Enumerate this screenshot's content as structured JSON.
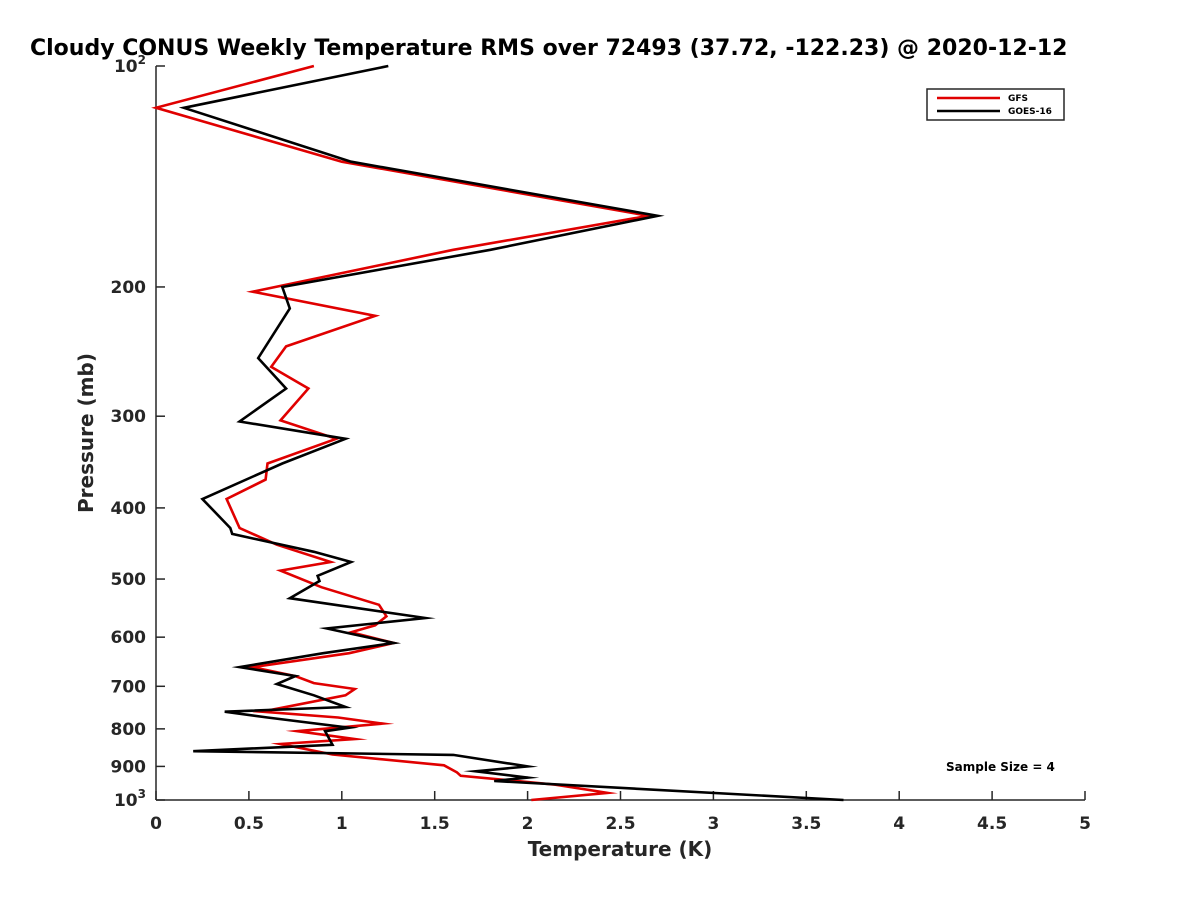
{
  "chart_data": {
    "type": "line",
    "title": "Cloudy CONUS Weekly Temperature RMS over 72493 (37.72, -122.23) @ 2020-12-12",
    "xlabel": "Temperature (K)",
    "ylabel": "Pressure (mb)",
    "xlim": [
      0,
      5
    ],
    "ylim": [
      100,
      1000
    ],
    "yscale": "log",
    "y_reversed": true,
    "x_ticks": [
      "0",
      "0.5",
      "1",
      "1.5",
      "2",
      "2.5",
      "3",
      "3.5",
      "4",
      "4.5",
      "5"
    ],
    "x_tick_values": [
      0,
      0.5,
      1,
      1.5,
      2,
      2.5,
      3,
      3.5,
      4,
      4.5,
      5
    ],
    "y_ticks": [
      {
        "value": 100,
        "base": "10",
        "exp": "2",
        "label": ""
      },
      {
        "value": 200,
        "label": "200"
      },
      {
        "value": 300,
        "label": "300"
      },
      {
        "value": 400,
        "label": "400"
      },
      {
        "value": 500,
        "label": "500"
      },
      {
        "value": 600,
        "label": "600"
      },
      {
        "value": 700,
        "label": "700"
      },
      {
        "value": 800,
        "label": "800"
      },
      {
        "value": 900,
        "label": "900"
      },
      {
        "value": 1000,
        "base": "10",
        "exp": "3",
        "label": ""
      }
    ],
    "legend_position": "top-right",
    "grid": false,
    "annotation": "Sample Size = 4",
    "series": [
      {
        "name": "GFS",
        "color": "#e00000",
        "x": [
          0.85,
          0.0,
          1.0,
          2.65,
          1.6,
          0.52,
          1.18,
          0.7,
          0.62,
          0.82,
          0.67,
          0.97,
          0.6,
          0.59,
          0.38,
          0.45,
          0.65,
          0.94,
          0.67,
          0.89,
          1.2,
          1.24,
          1.18,
          1.05,
          1.28,
          1.04,
          0.52,
          0.75,
          0.85,
          1.07,
          1.02,
          0.57,
          0.98,
          1.22,
          0.76,
          1.07,
          0.67,
          0.95,
          1.55,
          1.62,
          1.64,
          2.15,
          2.43,
          2.02
        ],
        "y": [
          100,
          114,
          135,
          160,
          178,
          203,
          219,
          241,
          257,
          275,
          304,
          322,
          348,
          366,
          389,
          426,
          449,
          474,
          487,
          513,
          542,
          562,
          578,
          591,
          611,
          631,
          659,
          678,
          693,
          706,
          720,
          758,
          772,
          787,
          806,
          826,
          839,
          867,
          897,
          917,
          927,
          953,
          978,
          1000
        ]
      },
      {
        "name": "GOES-16",
        "color": "#000000",
        "x": [
          1.25,
          0.15,
          1.05,
          2.7,
          1.8,
          0.68,
          0.72,
          0.55,
          0.7,
          0.45,
          1.02,
          0.68,
          0.25,
          0.4,
          0.41,
          0.85,
          1.05,
          0.87,
          0.88,
          0.72,
          1.45,
          0.92,
          1.28,
          0.9,
          0.45,
          0.75,
          0.65,
          0.85,
          1.02,
          0.37,
          0.6,
          1.04,
          0.91,
          0.95,
          0.2,
          1.6,
          2.0,
          1.72,
          2.0,
          1.82,
          3.7
        ],
        "y": [
          100,
          114,
          135,
          160,
          178,
          200,
          214,
          250,
          275,
          305,
          322,
          348,
          389,
          426,
          434,
          459,
          474,
          495,
          503,
          531,
          565,
          584,
          611,
          631,
          659,
          678,
          695,
          720,
          747,
          758,
          772,
          797,
          806,
          841,
          858,
          868,
          900,
          914,
          932,
          942,
          1000
        ]
      }
    ]
  }
}
